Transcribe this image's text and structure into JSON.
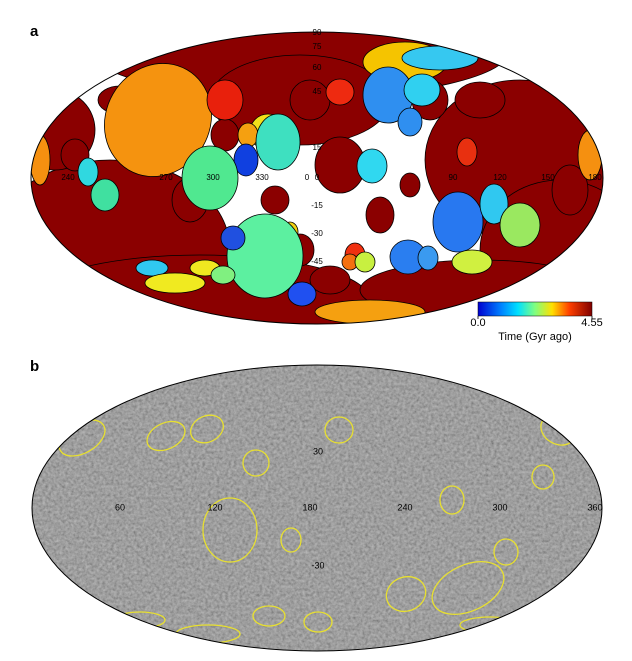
{
  "panels": [
    {
      "label": "a",
      "lat_labels": [
        90,
        75,
        60,
        45,
        15,
        0,
        -15,
        -30,
        -45
      ],
      "lon_labels": [
        240,
        270,
        300,
        330,
        0,
        90,
        120,
        150,
        180
      ],
      "colorbar": {
        "ticks": [
          {
            "value": 0,
            "label": "0.0"
          },
          4.55
        ],
        "label": "Time (Gyr ago)"
      }
    },
    {
      "label": "b",
      "lon_labels": [
        60,
        120,
        180,
        240,
        300,
        360
      ],
      "lat_labels": [
        30,
        -30
      ]
    }
  ]
}
